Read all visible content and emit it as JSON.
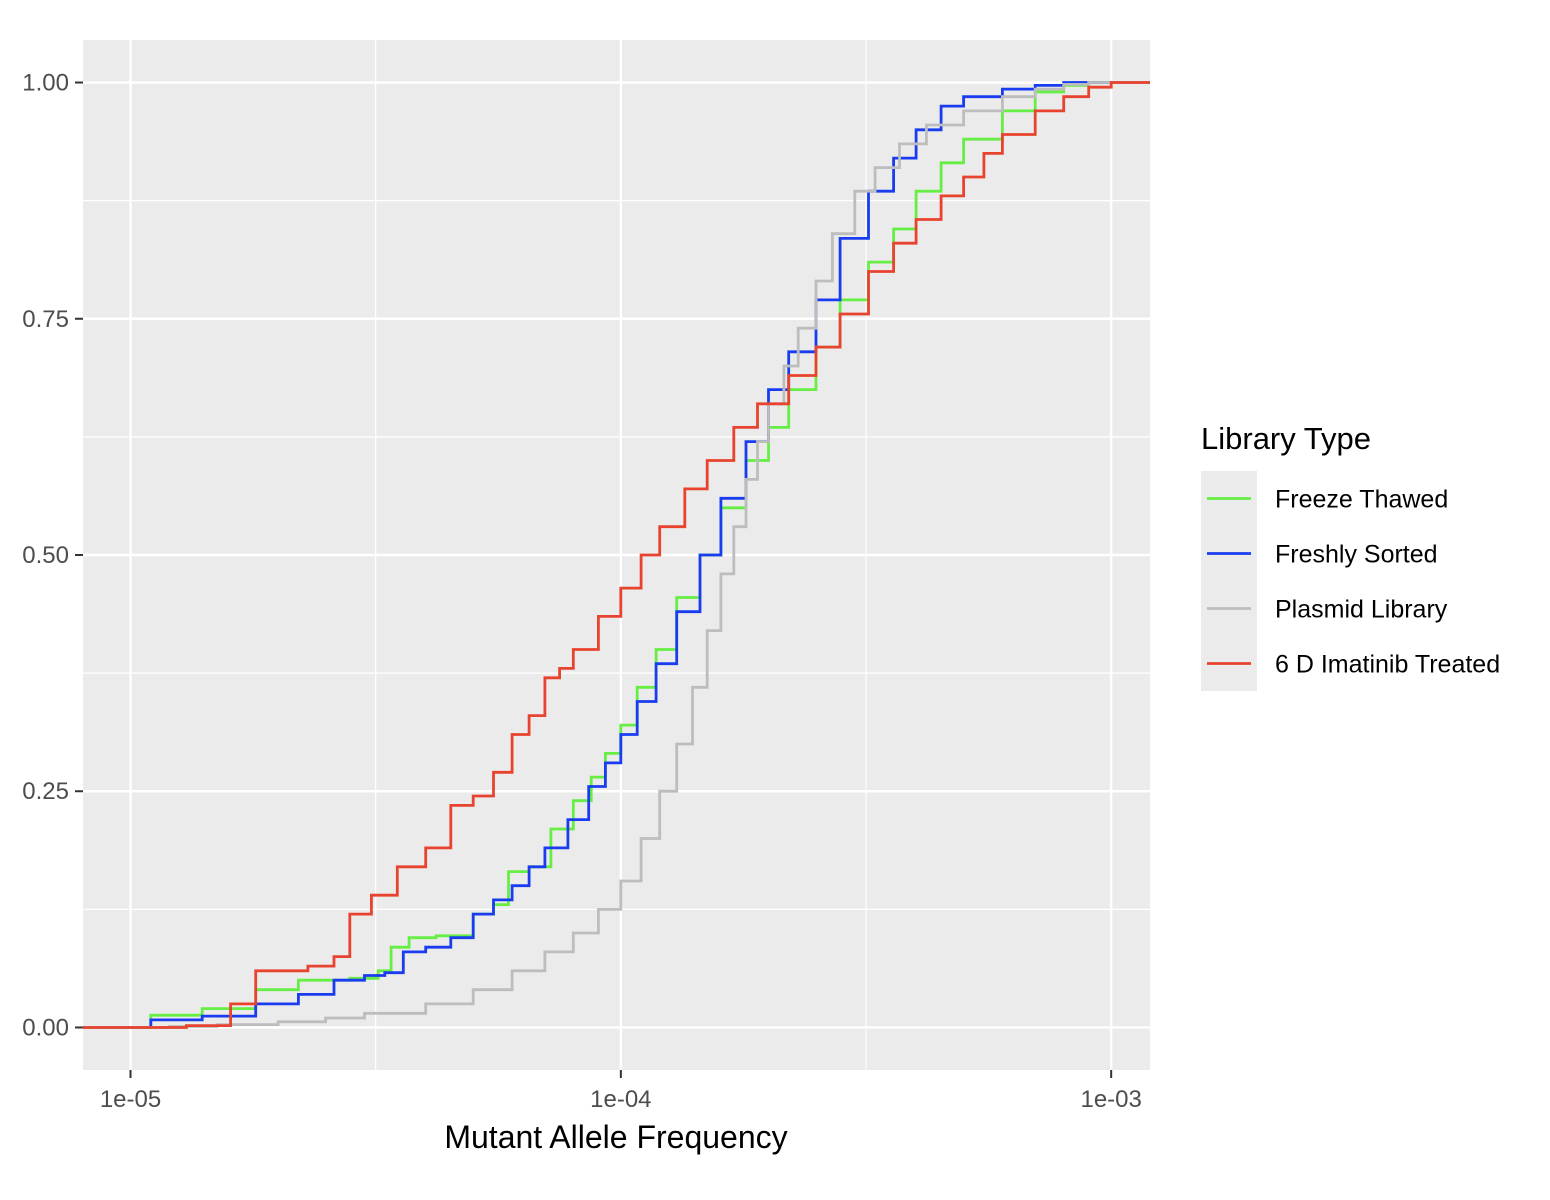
{
  "chart_data": {
    "type": "line",
    "subtype": "empirical cumulative distribution (step)",
    "xlabel": "Mutant Allele Frequency",
    "ylabel": "",
    "x_scale": "log10",
    "xlim": [
      8e-06,
      0.0012
    ],
    "ylim": [
      -0.045,
      1.045
    ],
    "x_ticks": [
      {
        "value": 1e-05,
        "label": "1e-05"
      },
      {
        "value": 0.0001,
        "label": "1e-04"
      },
      {
        "value": 0.001,
        "label": "1e-03"
      }
    ],
    "y_ticks": [
      {
        "value": 0,
        "label": "0.00"
      },
      {
        "value": 0.25,
        "label": "0.25"
      },
      {
        "value": 0.5,
        "label": "0.50"
      },
      {
        "value": 0.75,
        "label": "0.75"
      },
      {
        "value": 1,
        "label": "1.00"
      }
    ],
    "grid": true,
    "legend": {
      "title": "Library Type",
      "position": "right"
    },
    "series": [
      {
        "name": "Freeze Thawed",
        "color": "#66ee44",
        "x": [
          8e-06,
          1.1e-05,
          1.1e-05,
          1.4e-05,
          1.8e-05,
          2.2e-05,
          2.8e-05,
          3.2e-05,
          3.4e-05,
          3.7e-05,
          4.2e-05,
          5e-05,
          5.5e-05,
          5.9e-05,
          6.5e-05,
          7.2e-05,
          8e-05,
          8.7e-05,
          9.3e-05,
          0.0001,
          0.000108,
          0.000118,
          0.00013,
          0.000145,
          0.00016,
          0.00018,
          0.0002,
          0.00022,
          0.00025,
          0.00028,
          0.00032,
          0.00036,
          0.0004,
          0.00045,
          0.0005,
          0.0006,
          0.0007,
          0.0008,
          0.0009,
          0.001,
          0.0012
        ],
        "y": [
          0,
          0,
          0.013,
          0.02,
          0.04,
          0.05,
          0.052,
          0.06,
          0.085,
          0.095,
          0.097,
          0.12,
          0.13,
          0.165,
          0.17,
          0.21,
          0.24,
          0.265,
          0.29,
          0.32,
          0.36,
          0.4,
          0.455,
          0.5,
          0.55,
          0.6,
          0.635,
          0.675,
          0.72,
          0.77,
          0.81,
          0.845,
          0.885,
          0.915,
          0.94,
          0.97,
          0.99,
          0.997,
          1,
          1,
          1
        ]
      },
      {
        "name": "Freshly Sorted",
        "color": "#1a3cf0",
        "x": [
          8e-06,
          1.1e-05,
          1.4e-05,
          1.8e-05,
          2.2e-05,
          2.6e-05,
          3e-05,
          3.3e-05,
          3.6e-05,
          4e-05,
          4.5e-05,
          5e-05,
          5.5e-05,
          6e-05,
          6.5e-05,
          7e-05,
          7.8e-05,
          8.6e-05,
          9.3e-05,
          0.0001,
          0.000108,
          0.000118,
          0.00013,
          0.000145,
          0.00016,
          0.00018,
          0.0002,
          0.00022,
          0.00025,
          0.00028,
          0.00032,
          0.00036,
          0.0004,
          0.00045,
          0.0005,
          0.0006,
          0.0007,
          0.0008,
          0.0009,
          0.001,
          0.0012
        ],
        "y": [
          0,
          0.008,
          0.012,
          0.025,
          0.035,
          0.05,
          0.055,
          0.058,
          0.08,
          0.085,
          0.095,
          0.12,
          0.135,
          0.15,
          0.17,
          0.19,
          0.22,
          0.255,
          0.28,
          0.31,
          0.345,
          0.385,
          0.44,
          0.5,
          0.56,
          0.62,
          0.675,
          0.715,
          0.77,
          0.835,
          0.885,
          0.92,
          0.95,
          0.975,
          0.985,
          0.993,
          0.997,
          1,
          1,
          1,
          1
        ]
      },
      {
        "name": "Plasmid Library",
        "color": "#bdbdbd",
        "x": [
          8e-06,
          1.2e-05,
          1.5e-05,
          2e-05,
          2.5e-05,
          3e-05,
          4e-05,
          5e-05,
          6e-05,
          7e-05,
          8e-05,
          9e-05,
          0.0001,
          0.00011,
          0.00012,
          0.00013,
          0.00014,
          0.00015,
          0.00016,
          0.00017,
          0.00018,
          0.00019,
          0.0002,
          0.000215,
          0.00023,
          0.00025,
          0.00027,
          0.0003,
          0.00033,
          0.00037,
          0.00042,
          0.0005,
          0.0006,
          0.0007,
          0.0008,
          0.0009,
          0.001,
          0.0012
        ],
        "y": [
          0,
          0.001,
          0.003,
          0.006,
          0.01,
          0.015,
          0.025,
          0.04,
          0.06,
          0.08,
          0.1,
          0.125,
          0.155,
          0.2,
          0.25,
          0.3,
          0.36,
          0.42,
          0.48,
          0.53,
          0.58,
          0.62,
          0.66,
          0.7,
          0.74,
          0.79,
          0.84,
          0.885,
          0.91,
          0.935,
          0.955,
          0.97,
          0.985,
          0.993,
          0.998,
          1,
          1,
          1
        ]
      },
      {
        "name": "6 D Imatinib Treated",
        "color": "#e8432e",
        "x": [
          8e-06,
          1.3e-05,
          1.6e-05,
          1.8e-05,
          2.3e-05,
          2.6e-05,
          2.8e-05,
          3.1e-05,
          3.5e-05,
          4e-05,
          4.5e-05,
          5e-05,
          5.5e-05,
          6e-05,
          6.5e-05,
          7e-05,
          7.5e-05,
          8e-05,
          9e-05,
          0.0001,
          0.00011,
          0.00012,
          0.000135,
          0.00015,
          0.00017,
          0.00019,
          0.00022,
          0.00025,
          0.00028,
          0.00032,
          0.00036,
          0.0004,
          0.00045,
          0.0005,
          0.00055,
          0.0006,
          0.0007,
          0.0008,
          0.0009,
          0.001,
          0.0012
        ],
        "y": [
          0,
          0.002,
          0.025,
          0.06,
          0.065,
          0.075,
          0.12,
          0.14,
          0.17,
          0.19,
          0.235,
          0.245,
          0.27,
          0.31,
          0.33,
          0.37,
          0.38,
          0.4,
          0.435,
          0.465,
          0.5,
          0.53,
          0.57,
          0.6,
          0.635,
          0.66,
          0.69,
          0.72,
          0.755,
          0.8,
          0.83,
          0.855,
          0.88,
          0.9,
          0.925,
          0.945,
          0.97,
          0.985,
          0.995,
          1,
          1
        ]
      }
    ]
  }
}
